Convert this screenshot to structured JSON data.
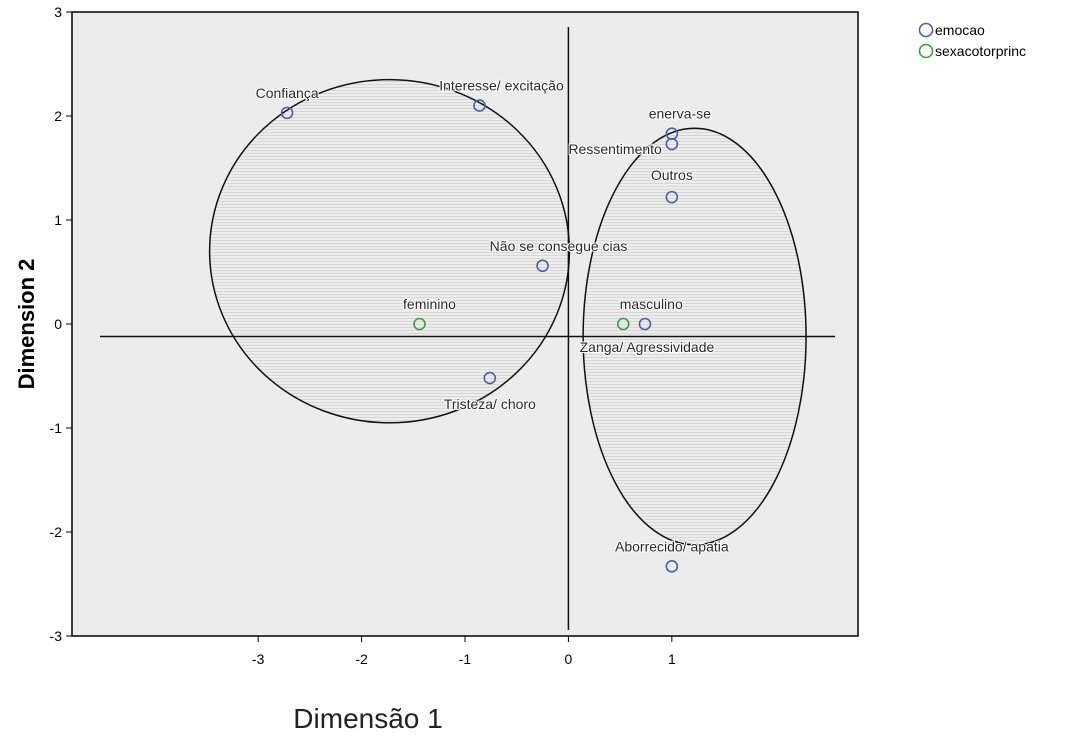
{
  "chart_data": {
    "type": "scatter",
    "xlabel": "Dimensão 1",
    "ylabel": "Dimension 2",
    "xlim": [
      -4.8,
      2.8
    ],
    "ylim": [
      -3,
      3
    ],
    "xticks": [
      -3,
      -2,
      -1,
      0,
      1
    ],
    "yticks": [
      -3,
      -2,
      -1,
      0,
      1,
      2,
      3
    ],
    "xtick_labels": [
      "-3",
      "-2",
      "-1",
      "0",
      "1"
    ],
    "ytick_labels": [
      "-3",
      "-2",
      "-1",
      "0",
      "1",
      "2",
      "3"
    ],
    "grid": false,
    "legend_position": "top-right, outside plot",
    "reference_lines": {
      "x": 0,
      "y": -0.12
    },
    "series": [
      {
        "name": "emocao",
        "color": "#4a5fa8",
        "points": [
          {
            "label": "Confiança",
            "x": -2.72,
            "y": 2.03
          },
          {
            "label": "Interesse/ excitação",
            "x": -0.86,
            "y": 2.1
          },
          {
            "label": "enerva-se",
            "x": 1.0,
            "y": 1.83
          },
          {
            "label": "Ressentimento",
            "x": 1.0,
            "y": 1.73
          },
          {
            "label": "Outros",
            "x": 1.0,
            "y": 1.22
          },
          {
            "label": "Não se consegue cias",
            "x": -0.25,
            "y": 0.56
          },
          {
            "label": "Zanga/ Agressividade",
            "x": 0.74,
            "y": 0.0
          },
          {
            "label": "Tristeza/ choro",
            "x": -0.76,
            "y": -0.52
          },
          {
            "label": "Aborrecido/ apatia",
            "x": 1.0,
            "y": -2.33
          }
        ]
      },
      {
        "name": "sexacotorprinc",
        "color": "#3aa03a",
        "points": [
          {
            "label": "feminino",
            "x": -1.44,
            "y": 0.0
          },
          {
            "label": "masculino",
            "x": 0.53,
            "y": 0.0
          }
        ]
      }
    ],
    "annotations": [
      {
        "shape": "ellipse",
        "cx": -1.73,
        "cy": 0.7,
        "rx": 3.55,
        "ry": 2.2
      },
      {
        "shape": "ellipse",
        "cx": 1.22,
        "cy": -0.12,
        "rx": 2.2,
        "ry": 2.67
      }
    ]
  }
}
